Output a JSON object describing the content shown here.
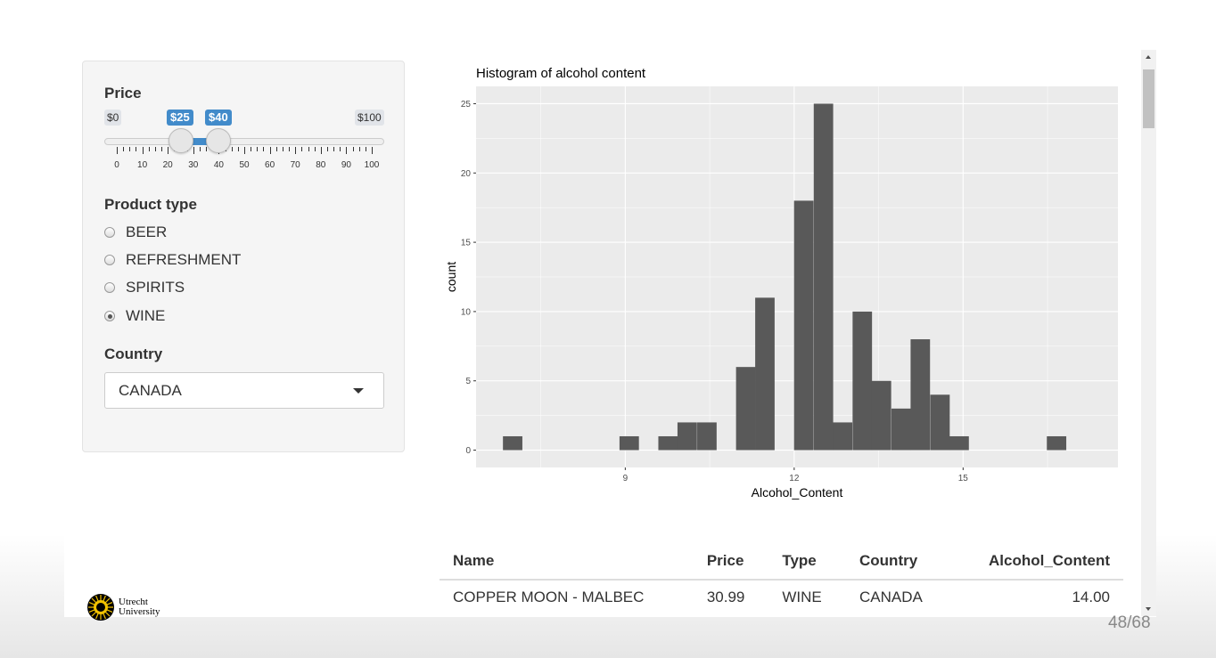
{
  "sidebar": {
    "price_label": "Price",
    "slider": {
      "min_label": "$0",
      "max_label": "$100",
      "from_label": "$25",
      "to_label": "$40",
      "min": 0,
      "max": 100,
      "from": 25,
      "to": 40,
      "tick_labels": [
        "0",
        "10",
        "20",
        "30",
        "40",
        "50",
        "60",
        "70",
        "80",
        "90",
        "100"
      ]
    },
    "product_type_label": "Product type",
    "product_types": [
      {
        "label": "BEER",
        "checked": false
      },
      {
        "label": "REFRESHMENT",
        "checked": false
      },
      {
        "label": "SPIRITS",
        "checked": false
      },
      {
        "label": "WINE",
        "checked": true
      }
    ],
    "country_label": "Country",
    "country_value": "CANADA"
  },
  "chart_data": {
    "type": "bar",
    "title": "Histogram of alcohol content",
    "xlabel": "Alcohol_Content",
    "ylabel": "count",
    "xlim": [
      6.35,
      17.75
    ],
    "ylim": [
      -1.25,
      26.25
    ],
    "bin_width": 0.345,
    "x_ticks": [
      9,
      12,
      15
    ],
    "y_ticks": [
      0,
      5,
      10,
      15,
      20,
      25
    ],
    "bins": [
      {
        "x": 7.0,
        "count": 1
      },
      {
        "x": 9.07,
        "count": 1
      },
      {
        "x": 9.76,
        "count": 1
      },
      {
        "x": 10.1,
        "count": 2
      },
      {
        "x": 10.45,
        "count": 2
      },
      {
        "x": 11.14,
        "count": 6
      },
      {
        "x": 11.48,
        "count": 11
      },
      {
        "x": 12.17,
        "count": 18
      },
      {
        "x": 12.52,
        "count": 25
      },
      {
        "x": 12.86,
        "count": 2
      },
      {
        "x": 13.21,
        "count": 10
      },
      {
        "x": 13.55,
        "count": 5
      },
      {
        "x": 13.9,
        "count": 3
      },
      {
        "x": 14.24,
        "count": 8
      },
      {
        "x": 14.59,
        "count": 4
      },
      {
        "x": 14.93,
        "count": 1
      },
      {
        "x": 16.66,
        "count": 1
      }
    ],
    "grid": true,
    "panel_color": "#ebebeb",
    "bar_color": "#595959"
  },
  "table": {
    "headers": [
      "Name",
      "Price",
      "Type",
      "Country",
      "Alcohol_Content"
    ],
    "rows": [
      [
        "COPPER MOON - MALBEC",
        "30.99",
        "WINE",
        "CANADA",
        "14.00"
      ]
    ]
  },
  "footer": {
    "logo_line1": "Utrecht",
    "logo_line2": "University",
    "page_number": "48/68"
  },
  "colors": {
    "accent": "#428bca"
  }
}
